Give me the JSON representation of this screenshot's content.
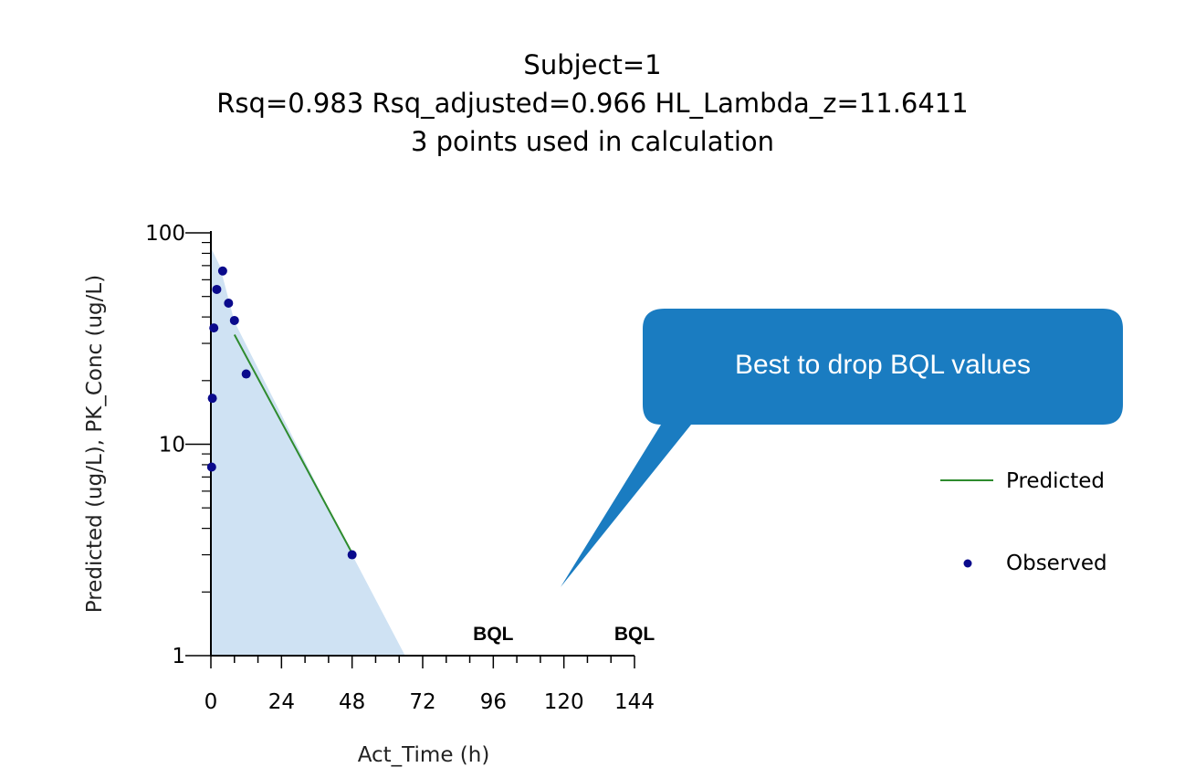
{
  "title": {
    "line1": "Subject=1",
    "line2": "Rsq=0.983  Rsq_adjusted=0.966  HL_Lambda_z=11.6411",
    "line3": "3 points used in calculation"
  },
  "callout": {
    "text": "Best to drop BQL values",
    "color": "#1a7cc1"
  },
  "legend": {
    "predicted": "Predicted",
    "observed": "Observed"
  },
  "colors": {
    "predicted_line": "#2e8b2e",
    "observed_marker": "#0a0a8c",
    "shaded_area": "#cfe2f3",
    "axis": "#000000"
  },
  "chart_data": {
    "type": "scatter",
    "xlabel": "Act_Time (h)",
    "ylabel": "Predicted (ug/L), PK_Conc (ug/L)",
    "xlim": [
      0,
      144
    ],
    "ylim": [
      1,
      100
    ],
    "yscale": "log",
    "x_ticks": [
      0,
      24,
      48,
      72,
      96,
      120,
      144
    ],
    "y_ticks": [
      1,
      10,
      100
    ],
    "grid": false,
    "legend_position": "right",
    "series": [
      {
        "name": "Observed",
        "kind": "scatter",
        "x": [
          0.25,
          0.5,
          1,
          2,
          4,
          6,
          8,
          12,
          48
        ],
        "y": [
          7.8,
          16.5,
          35.5,
          54,
          66,
          46.5,
          38.5,
          21.5,
          3.0
        ]
      },
      {
        "name": "Predicted",
        "kind": "line",
        "x": [
          8,
          48
        ],
        "y": [
          33,
          3.05
        ]
      }
    ],
    "shaded_area": {
      "x": [
        0,
        0,
        3,
        8,
        48,
        66,
        66
      ],
      "y": [
        1,
        85,
        70,
        38,
        3.0,
        1,
        1
      ]
    },
    "annotations": [
      {
        "text": "BQL",
        "x": 96
      },
      {
        "text": "BQL",
        "x": 144
      }
    ]
  }
}
